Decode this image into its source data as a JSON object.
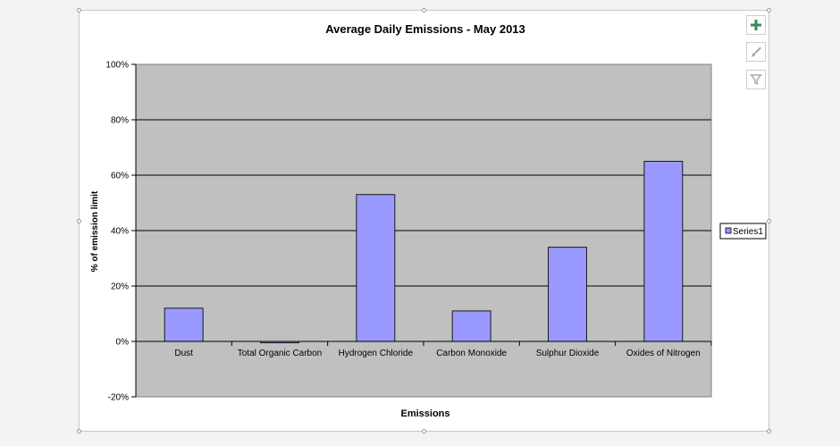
{
  "chart_data": {
    "type": "bar",
    "title": "Average Daily Emissions - May 2013",
    "xlabel": "Emissions",
    "ylabel": "% of emission limit",
    "categories": [
      "Dust",
      "Total Organic Carbon",
      "Hydrogen Chloride",
      "Carbon Monoxide",
      "Sulphur Dioxide",
      "Oxides of Nitrogen"
    ],
    "series": [
      {
        "name": "Series1",
        "values": [
          12,
          -0.5,
          53,
          11,
          34,
          65
        ]
      }
    ],
    "ylim": [
      -20,
      100
    ],
    "yticks": [
      -20,
      0,
      20,
      40,
      60,
      80,
      100
    ],
    "ytick_labels": [
      "-20%",
      "0%",
      "20%",
      "40%",
      "60%",
      "80%",
      "100%"
    ],
    "grid": true,
    "legend_position": "right",
    "colors": {
      "bar_fill": "#9999ff",
      "bar_stroke": "#1a1a1a",
      "plot_background": "#c0c0c0",
      "gridline": "#000000"
    }
  },
  "toolbar": {
    "add_icon": "plus-icon",
    "style_icon": "brush-icon",
    "filter_icon": "filter-icon"
  }
}
